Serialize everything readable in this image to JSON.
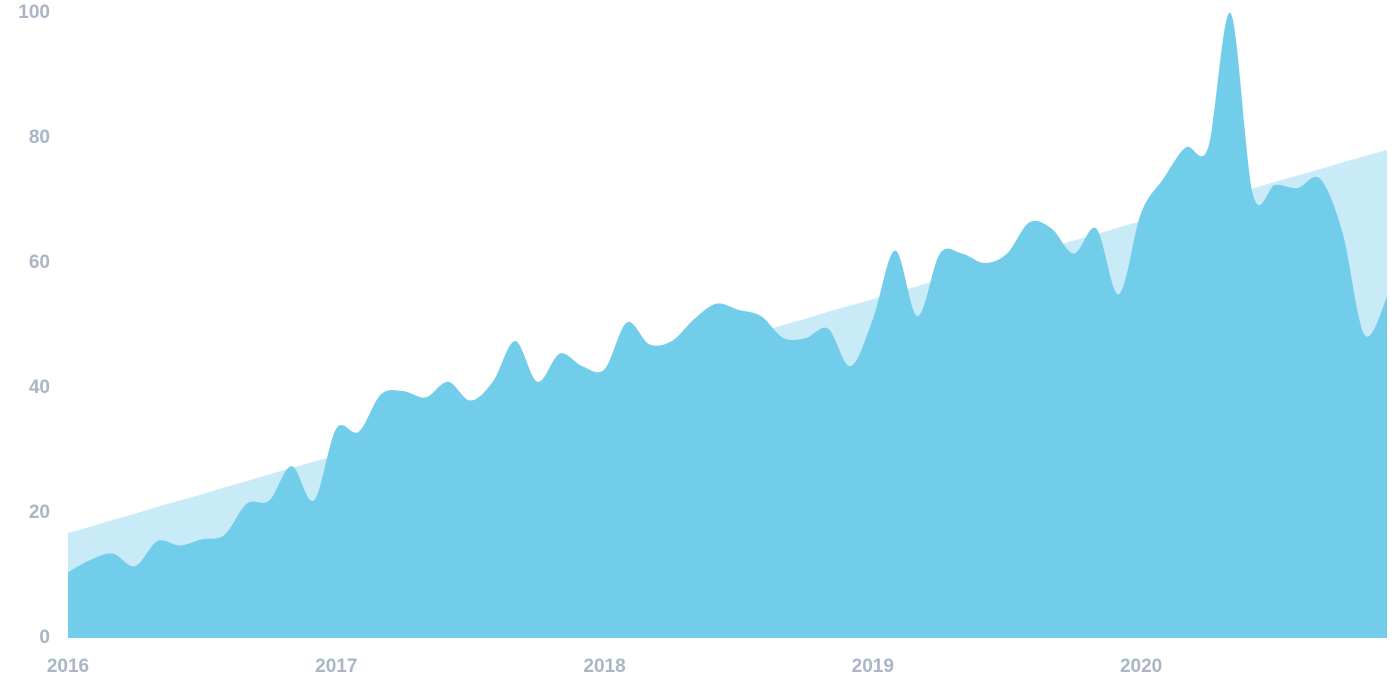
{
  "chart_data": {
    "type": "area",
    "categories": [
      "2016",
      null,
      null,
      null,
      null,
      null,
      null,
      null,
      null,
      null,
      null,
      null,
      "2017",
      null,
      null,
      null,
      null,
      null,
      null,
      null,
      null,
      null,
      null,
      null,
      "2018",
      null,
      null,
      null,
      null,
      null,
      null,
      null,
      null,
      null,
      null,
      null,
      "2019",
      null,
      null,
      null,
      null,
      null,
      null,
      null,
      null,
      null,
      null,
      null,
      "2020",
      null,
      null,
      null,
      null,
      null,
      null,
      null,
      null,
      null,
      null,
      null
    ],
    "series": [
      {
        "color": "#c9ebf7",
        "values": [
          16.8,
          17.8,
          18.9,
          19.9,
          21.0,
          22.0,
          23.0,
          24.1,
          25.1,
          26.2,
          27.2,
          28.2,
          29.3,
          30.3,
          31.4,
          32.4,
          33.4,
          34.5,
          35.5,
          36.6,
          37.6,
          38.6,
          39.7,
          40.7,
          41.8,
          42.8,
          43.8,
          44.9,
          45.9,
          47.0,
          48.0,
          49.0,
          50.1,
          51.1,
          52.2,
          53.2,
          54.2,
          55.3,
          56.3,
          57.4,
          58.4,
          59.4,
          60.5,
          61.5,
          62.6,
          63.6,
          64.6,
          65.7,
          66.7,
          67.8,
          68.8,
          69.8,
          70.9,
          71.9,
          73.0,
          74.0,
          75.0,
          76.1,
          77.1,
          78.1
        ]
      },
      {
        "color": "#72cdea",
        "values": [
          10.5,
          12.5,
          13.5,
          11.5,
          15.5,
          14.8,
          15.8,
          16.5,
          21.5,
          22,
          27.5,
          22,
          33.5,
          33,
          39,
          39.5,
          38.5,
          41,
          38,
          41,
          47.5,
          41,
          45.5,
          43.5,
          43,
          50.5,
          47,
          47.5,
          51,
          53.5,
          52.5,
          51.5,
          48,
          48,
          49.5,
          43.5,
          51,
          62,
          51.5,
          61.5,
          61.5,
          60,
          61.5,
          66.5,
          65.5,
          61.5,
          65.5,
          55,
          68,
          73.5,
          78.5,
          78.5,
          100,
          71,
          72.5,
          72,
          73.5,
          65,
          48.5,
          54.5
        ]
      }
    ],
    "ylim": [
      0,
      100
    ],
    "yticks": [
      0,
      20,
      40,
      60,
      80,
      100
    ],
    "grid": false
  }
}
